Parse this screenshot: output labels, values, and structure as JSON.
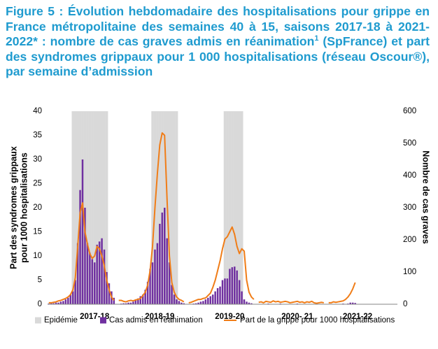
{
  "chart_data": {
    "type": "combo",
    "title": "Figure 5 : Évolution hebdomadaire des hospitalisations pour grippe en France métropolitaine des semaines 40 à 15, saisons 2017-18 à 2021-2022* : nombre de cas graves admis en réanimation",
    "title_superscript": "1",
    "title_continued": "(SpFrance) et part des syndromes grippaux pour 1 000 hospitalisations (réseau Oscour®), par semaine d’admission",
    "ylabel": [
      "Part des syndromes grippaux",
      "pour 1000  hospitalisations"
    ],
    "y2label": "Nombre de cas graves",
    "ylim": [
      0,
      40
    ],
    "yticks": [
      0,
      5,
      10,
      15,
      20,
      25,
      30,
      35,
      40
    ],
    "y2lim": [
      0,
      600
    ],
    "y2ticks": [
      0,
      100,
      200,
      300,
      400,
      500,
      600
    ],
    "grid": false,
    "legend": "bottom",
    "categories": [
      null,
      null,
      null,
      null,
      null,
      null,
      null,
      null,
      null,
      null,
      null,
      null,
      null,
      null,
      null,
      null,
      null,
      null,
      null,
      "2017-18",
      null,
      null,
      null,
      null,
      null,
      null,
      null,
      null,
      null,
      null,
      null,
      null,
      null,
      null,
      null,
      null,
      null,
      null,
      null,
      null,
      null,
      null,
      null,
      null,
      null,
      null,
      "2018-19",
      null,
      null,
      null,
      null,
      null,
      null,
      null,
      null,
      null,
      null,
      null,
      null,
      null,
      null,
      null,
      null,
      null,
      null,
      null,
      null,
      null,
      null,
      null,
      null,
      null,
      null,
      null,
      null,
      "2019-20",
      null,
      null,
      null,
      null,
      null,
      null,
      null,
      null,
      null,
      null,
      null,
      null,
      null,
      null,
      null,
      null,
      null,
      null,
      null,
      null,
      null,
      null,
      null,
      null,
      null,
      null,
      null,
      "2020- 21",
      null,
      null,
      null,
      null,
      null,
      null,
      null,
      null,
      null,
      null,
      null,
      null,
      null,
      null,
      null,
      null,
      null,
      null,
      null,
      null,
      null,
      null,
      null,
      null,
      "2021-22",
      null,
      null,
      null,
      null,
      null,
      null,
      null,
      null,
      null,
      null,
      null,
      null,
      null,
      null,
      null,
      null
    ],
    "series": [
      {
        "name": "Epidémie",
        "mark": "band",
        "axis": "y",
        "color": "#d9d9d9",
        "values": [
          null,
          null,
          null,
          null,
          null,
          null,
          null,
          null,
          null,
          null,
          40,
          40,
          40,
          40,
          40,
          40,
          40,
          40,
          40,
          40,
          40,
          40,
          40,
          40,
          40,
          null,
          null,
          null,
          null,
          null,
          null,
          null,
          null,
          null,
          null,
          null,
          null,
          null,
          null,
          null,
          null,
          null,
          null,
          40,
          40,
          40,
          40,
          40,
          40,
          40,
          40,
          40,
          40,
          40,
          null,
          null,
          null,
          null,
          null,
          null,
          null,
          null,
          null,
          null,
          null,
          null,
          null,
          null,
          null,
          null,
          null,
          null,
          null,
          40,
          40,
          40,
          40,
          40,
          40,
          40,
          40,
          null,
          null,
          null,
          null,
          null,
          null,
          null,
          null,
          null,
          null,
          null,
          null,
          null,
          null,
          null,
          null,
          null,
          null,
          null,
          null,
          null,
          null,
          null,
          null,
          null,
          null,
          null,
          null,
          null,
          null,
          null,
          null,
          null,
          null,
          null,
          null,
          null,
          null,
          null,
          null,
          null,
          null,
          null,
          null,
          null,
          null,
          null,
          null,
          null,
          null,
          null,
          null,
          null,
          null,
          null,
          null,
          null,
          null,
          null,
          null,
          null,
          null,
          null,
          null
        ]
      },
      {
        "name": "Cas admis en réanimation",
        "mark": "bar",
        "axis": "y2",
        "color": "#7030a0",
        "values": [
          2,
          3,
          3,
          5,
          5,
          8,
          10,
          15,
          20,
          30,
          40,
          75,
          190,
          355,
          450,
          300,
          190,
          160,
          140,
          130,
          185,
          195,
          205,
          170,
          100,
          65,
          40,
          20,
          null,
          0,
          2,
          3,
          3,
          5,
          5,
          8,
          12,
          18,
          25,
          30,
          45,
          70,
          110,
          130,
          170,
          190,
          250,
          285,
          300,
          205,
          130,
          60,
          30,
          15,
          10,
          5,
          3,
          null,
          0,
          0,
          2,
          3,
          5,
          8,
          10,
          15,
          20,
          25,
          30,
          40,
          50,
          55,
          75,
          80,
          80,
          110,
          115,
          117,
          105,
          75,
          40,
          15,
          8,
          5,
          3,
          0,
          null,
          0,
          0,
          1,
          0,
          2,
          0,
          1,
          0,
          0,
          2,
          1,
          0,
          0,
          1,
          0,
          0,
          2,
          0,
          0,
          1,
          0,
          0,
          1,
          0,
          0,
          0,
          1,
          0,
          null,
          0,
          0,
          0,
          1,
          0,
          1,
          2,
          1,
          2,
          5,
          5,
          4,
          null,
          null,
          null,
          null,
          null,
          null,
          null,
          null,
          null,
          null,
          null,
          null,
          null,
          null,
          null,
          null,
          null
        ]
      },
      {
        "name": "Part de la grippe pour 1000 hospitalisations",
        "mark": "line",
        "axis": "y",
        "color": "#f07d18",
        "values": [
          0.3,
          0.3,
          0.4,
          0.5,
          0.7,
          0.8,
          1.0,
          1.2,
          1.5,
          2.0,
          3.0,
          5.5,
          12,
          19,
          21,
          15,
          12.5,
          10.5,
          9.5,
          10,
          12,
          11.5,
          10,
          8,
          5,
          3,
          1.5,
          0.8,
          null,
          0.8,
          0.8,
          0.6,
          0.5,
          0.7,
          0.8,
          0.7,
          0.9,
          1.0,
          1.2,
          1.8,
          2.5,
          4,
          7,
          12,
          20,
          27,
          33,
          35.5,
          35,
          22,
          10,
          4.5,
          2.5,
          1.5,
          1.0,
          0.8,
          0.5,
          null,
          0.3,
          0.4,
          0.6,
          0.8,
          1.0,
          1.0,
          1.2,
          1.3,
          1.8,
          2.3,
          3.5,
          5,
          7,
          9,
          11.5,
          13.5,
          14,
          15,
          16,
          14.5,
          12,
          10.5,
          11.5,
          11,
          5,
          2.5,
          1.5,
          1.0,
          null,
          0.4,
          0.5,
          0.3,
          0.6,
          0.5,
          0.4,
          0.7,
          0.5,
          0.6,
          0.4,
          0.5,
          0.6,
          0.5,
          0.3,
          0.4,
          0.5,
          0.6,
          0.4,
          0.5,
          0.3,
          0.5,
          0.4,
          0.6,
          0.3,
          0.2,
          0.3,
          0.4,
          0.3,
          null,
          0.3,
          0.3,
          0.5,
          0.4,
          0.5,
          0.6,
          0.7,
          1.0,
          1.5,
          2.2,
          3.2,
          4.5,
          null,
          null,
          null,
          null,
          null,
          null,
          null,
          null,
          null,
          null,
          null,
          null,
          null,
          null,
          null,
          null,
          null
        ]
      }
    ]
  }
}
